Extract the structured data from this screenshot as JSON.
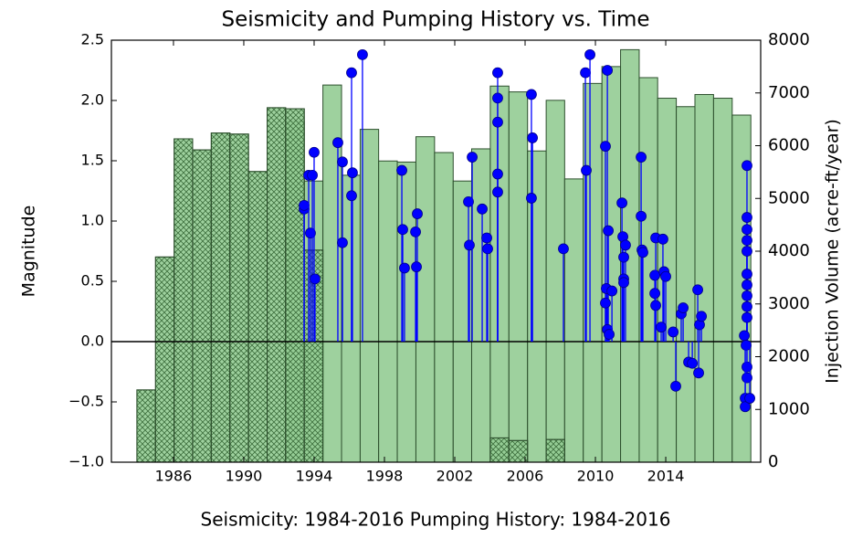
{
  "chart_data": {
    "type": "combo",
    "title": "Seismicity and Pumping History vs. Time",
    "xlabel": "Seismicity: 1984-2016    Pumping History: 1984-2016",
    "ylabel": "Magnitude",
    "y2label": "Injection Volume (acre-ft/year)",
    "xlim": [
      1982.47,
      2019.4
    ],
    "xticks": [
      1986,
      1990,
      1994,
      1998,
      2002,
      2006,
      2010,
      2014
    ],
    "ylim": [
      -1,
      2.5
    ],
    "yticks": [
      {
        "value": -1,
        "label": "−1.0"
      },
      {
        "value": -0.5,
        "label": "−0.5"
      },
      {
        "value": 0,
        "label": "0.0"
      },
      0.5,
      {
        "value": 1,
        "label": "1.0"
      },
      1.5,
      {
        "value": 2,
        "label": "2.0"
      },
      2.5
    ],
    "y2lim": [
      0,
      8000
    ],
    "y2ticks": [
      0,
      1000,
      2000,
      3000,
      4000,
      5000,
      6000,
      7000,
      8000
    ],
    "bins": [
      1983.92,
      1984.98,
      1986.04,
      1987.09,
      1988.15,
      1989.21,
      1990.27,
      1991.33,
      1992.38,
      1993.44,
      1994.5,
      1995.56,
      1996.62,
      1997.67,
      1998.73,
      1999.79,
      2000.85,
      2001.91,
      2002.96,
      2004.02,
      2005.08,
      2006.14,
      2007.2,
      2008.25,
      2009.31,
      2010.37,
      2011.43,
      2012.49,
      2013.54,
      2014.6,
      2015.66,
      2016.72,
      2017.78,
      2018.84
    ],
    "bar_series": [
      {
        "color": "#93cc93",
        "values": [
          null,
          null,
          null,
          null,
          null,
          null,
          null,
          null,
          6470,
          5330,
          7150,
          5440,
          6310,
          5710,
          5690,
          6170,
          5870,
          5330,
          5940,
          7130,
          7020,
          5900,
          6860,
          5370,
          7180,
          7500,
          7820,
          7290,
          6900,
          6740,
          6970,
          6900,
          6580
        ],
        "axis": "y2"
      },
      {
        "color": "#93cc93",
        "hatch": true,
        "values": [
          1370,
          3890,
          6130,
          5920,
          6240,
          6220,
          5510,
          6720,
          6700,
          4020,
          null,
          null,
          null,
          null,
          null,
          null,
          null,
          null,
          null,
          460,
          410,
          null,
          430,
          null,
          null,
          null,
          null,
          null,
          null,
          null,
          null,
          null,
          null
        ],
        "axis": "y2"
      }
    ],
    "stem": {
      "color": "#0000ff",
      "x": [
        1993.43,
        1993.43,
        1993.69,
        1993.79,
        1993.9,
        1994.0,
        1994.05,
        1995.35,
        1995.61,
        1995.61,
        1996.13,
        1996.18,
        1996.13,
        1996.75,
        1998.99,
        1999.04,
        1999.14,
        1999.77,
        1999.87,
        1999.82,
        2002.78,
        2002.83,
        2002.99,
        2003.56,
        2003.82,
        2003.87,
        2004.44,
        2004.44,
        2004.44,
        2004.44,
        2004.44,
        2006.36,
        2006.42,
        2006.36,
        2008.18,
        2009.43,
        2009.69,
        2009.48,
        2010.68,
        2010.57,
        2010.73,
        2010.62,
        2010.57,
        2010.68,
        2010.78,
        2010.94,
        2011.51,
        2011.56,
        2011.71,
        2011.61,
        2011.61,
        2011.61,
        2012.6,
        2012.6,
        2012.65,
        2012.7,
        2013.38,
        2013.38,
        2013.43,
        2013.43,
        2013.84,
        2013.9,
        2014.0,
        2013.74,
        2014.42,
        2014.57,
        2014.88,
        2014.99,
        2015.3,
        2015.51,
        2015.82,
        2015.92,
        2016.03,
        2015.87,
        2018.62,
        2018.62,
        2018.62,
        2018.62,
        2018.62,
        2018.62,
        2018.62,
        2018.62,
        2018.62,
        2018.62,
        2018.47,
        2018.57,
        2018.62,
        2018.62,
        2018.52,
        2018.52,
        2018.78
      ],
      "values": [
        1.1,
        1.13,
        1.38,
        0.9,
        1.38,
        1.57,
        0.52,
        1.65,
        1.49,
        0.82,
        2.23,
        1.4,
        1.21,
        2.38,
        1.42,
        0.93,
        0.61,
        0.91,
        1.06,
        0.62,
        1.16,
        0.8,
        1.53,
        1.1,
        0.86,
        0.77,
        2.23,
        2.02,
        1.82,
        1.39,
        1.24,
        2.05,
        1.69,
        1.19,
        0.77,
        2.23,
        2.38,
        1.42,
        2.25,
        1.62,
        0.92,
        0.44,
        0.32,
        0.1,
        0.06,
        0.42,
        1.15,
        0.87,
        0.8,
        0.7,
        0.52,
        0.49,
        1.53,
        1.04,
        0.76,
        0.74,
        0.55,
        0.4,
        0.3,
        0.86,
        0.85,
        0.58,
        0.54,
        0.12,
        0.08,
        -0.37,
        0.23,
        0.28,
        -0.17,
        -0.18,
        0.43,
        0.14,
        0.21,
        -0.26,
        1.46,
        1.03,
        0.93,
        0.84,
        0.75,
        0.56,
        0.47,
        0.38,
        0.29,
        0.2,
        0.05,
        -0.03,
        -0.21,
        -0.3,
        -0.47,
        -0.54,
        -0.47
      ]
    }
  }
}
